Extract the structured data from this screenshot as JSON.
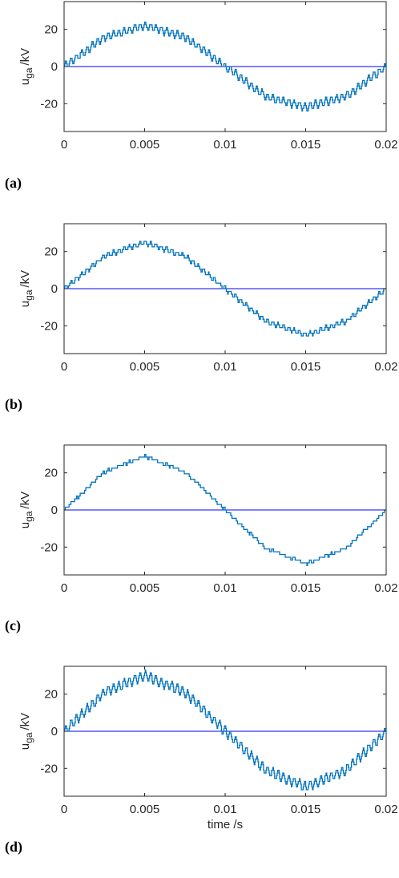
{
  "figure": {
    "panels": [
      {
        "label": "(a)"
      },
      {
        "label": "(b)"
      },
      {
        "label": "(c)"
      },
      {
        "label": "(d)"
      }
    ],
    "ylabel_main": "u",
    "ylabel_sub": "ga",
    "ylabel_unit": "/kV",
    "xlabel": "time /s"
  },
  "chart_data": [
    {
      "type": "line",
      "panel": "(a)",
      "xlabel": "",
      "ylabel": "u_ga /kV",
      "xlim": [
        0,
        0.02
      ],
      "ylim": [
        -35,
        35
      ],
      "xticks": [
        "0",
        "0.005",
        "0.01",
        "0.015",
        "0.02"
      ],
      "yticks": [
        "20",
        "0",
        "-20"
      ],
      "grid": false,
      "series": [
        {
          "color": "#0072BD",
          "x": [
            0,
            0.0025,
            0.005,
            0.0075,
            0.01,
            0.0125,
            0.015,
            0.0175,
            0.02
          ],
          "values": [
            0,
            16,
            22,
            16,
            0,
            -16,
            -22,
            -16,
            0
          ],
          "ripple_amplitude": 2
        }
      ],
      "reference_line": {
        "y": 0,
        "color": "#0000FF"
      }
    },
    {
      "type": "line",
      "panel": "(b)",
      "xlabel": "",
      "ylabel": "u_ga /kV",
      "xlim": [
        0,
        0.02
      ],
      "ylim": [
        -35,
        35
      ],
      "xticks": [
        "0",
        "0.005",
        "0.01",
        "0.015",
        "0.02"
      ],
      "yticks": [
        "20",
        "0",
        "-20"
      ],
      "grid": false,
      "series": [
        {
          "color": "#0072BD",
          "x": [
            0,
            0.0025,
            0.005,
            0.0075,
            0.01,
            0.0125,
            0.015,
            0.0175,
            0.02
          ],
          "values": [
            0,
            17.5,
            25,
            17.5,
            0,
            -17.5,
            -25,
            -17.5,
            0
          ],
          "ripple_amplitude": 1.2
        }
      ],
      "reference_line": {
        "y": 0,
        "color": "#0000FF"
      }
    },
    {
      "type": "line",
      "panel": "(c)",
      "xlabel": "",
      "ylabel": "u_ga /kV",
      "xlim": [
        0,
        0.02
      ],
      "ylim": [
        -35,
        35
      ],
      "xticks": [
        "0",
        "0.005",
        "0.01",
        "0.015",
        "0.02"
      ],
      "yticks": [
        "20",
        "0",
        "-20"
      ],
      "grid": false,
      "series": [
        {
          "color": "#0072BD",
          "x": [
            0,
            0.0025,
            0.005,
            0.0075,
            0.01,
            0.0125,
            0.015,
            0.0175,
            0.02
          ],
          "values": [
            0,
            20.5,
            29,
            20.5,
            0,
            -20.5,
            -29,
            -20.5,
            0
          ],
          "ripple_amplitude": 0.6
        }
      ],
      "reference_line": {
        "y": 0,
        "color": "#0000FF"
      }
    },
    {
      "type": "line",
      "panel": "(d)",
      "xlabel": "time /s",
      "ylabel": "u_ga /kV",
      "xlim": [
        0,
        0.02
      ],
      "ylim": [
        -35,
        35
      ],
      "xticks": [
        "0",
        "0.005",
        "0.01",
        "0.015",
        "0.02"
      ],
      "yticks": [
        "20",
        "0",
        "-20"
      ],
      "grid": false,
      "series": [
        {
          "color": "#0072BD",
          "x": [
            0,
            0.0025,
            0.005,
            0.0075,
            0.01,
            0.0125,
            0.015,
            0.0175,
            0.02
          ],
          "values": [
            0,
            21,
            30,
            21,
            0,
            -21,
            -30,
            -21,
            0
          ],
          "ripple_amplitude": 2.5
        }
      ],
      "reference_line": {
        "y": 0,
        "color": "#0000FF"
      }
    }
  ]
}
